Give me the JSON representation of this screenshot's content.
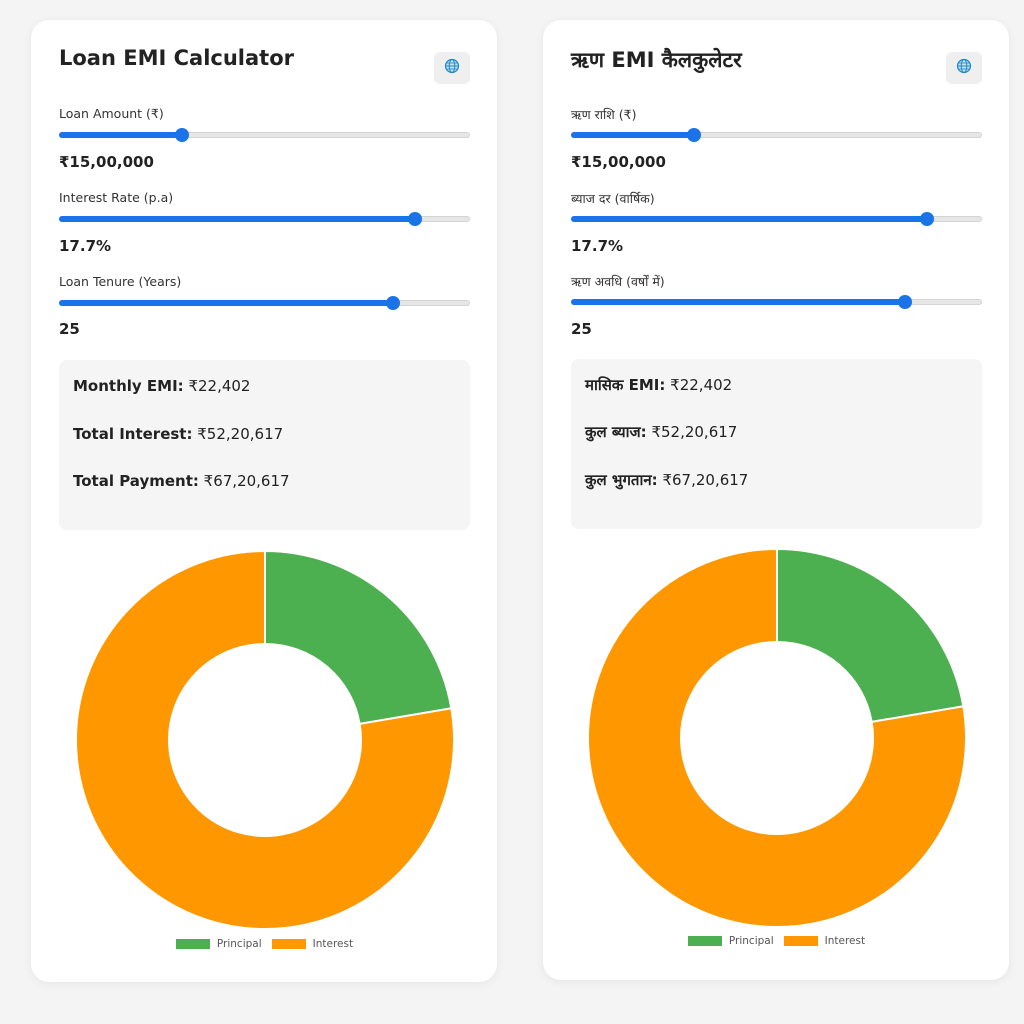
{
  "colors": {
    "principal": "#4caf50",
    "interest": "#ff9800",
    "slider": "#1a73e8"
  },
  "panels": [
    {
      "title": "Loan EMI Calculator",
      "lang_icon": "globe-icon",
      "fields": [
        {
          "label": "Loan Amount (₹)",
          "value": "₹15,00,000",
          "slider_fraction": 0.3
        },
        {
          "label": "Interest Rate (p.a)",
          "value": "17.7%",
          "slider_fraction": 0.867
        },
        {
          "label": "Loan Tenure (Years)",
          "value": "25",
          "slider_fraction": 0.813
        }
      ],
      "summary": [
        {
          "label": "Monthly EMI:",
          "value": "₹22,402"
        },
        {
          "label": "Total Interest:",
          "value": "₹52,20,617"
        },
        {
          "label": "Total Payment:",
          "value": "₹67,20,617"
        }
      ],
      "legend": {
        "principal": "Principal",
        "interest": "Interest"
      }
    },
    {
      "title": "ऋण EMI कैलकुलेटर",
      "lang_icon": "globe-icon",
      "fields": [
        {
          "label": "ऋण राशि (₹)",
          "value": "₹15,00,000",
          "slider_fraction": 0.3
        },
        {
          "label": "ब्याज दर (वार्षिक)",
          "value": "17.7%",
          "slider_fraction": 0.867
        },
        {
          "label": "ऋण अवधि (वर्षों में)",
          "value": "25",
          "slider_fraction": 0.813
        }
      ],
      "summary": [
        {
          "label": "मासिक EMI:",
          "value": "₹22,402"
        },
        {
          "label": "कुल ब्याज:",
          "value": "₹52,20,617"
        },
        {
          "label": "कुल भुगतान:",
          "value": "₹67,20,617"
        }
      ],
      "legend": {
        "principal": "Principal",
        "interest": "Interest"
      }
    }
  ],
  "chart_data": [
    {
      "type": "pie",
      "categories": [
        "Principal",
        "Interest"
      ],
      "values": [
        1500000,
        5220617
      ],
      "legend_position": "bottom"
    },
    {
      "type": "pie",
      "categories": [
        "Principal",
        "Interest"
      ],
      "values": [
        1500000,
        5220617
      ],
      "legend_position": "bottom"
    }
  ]
}
